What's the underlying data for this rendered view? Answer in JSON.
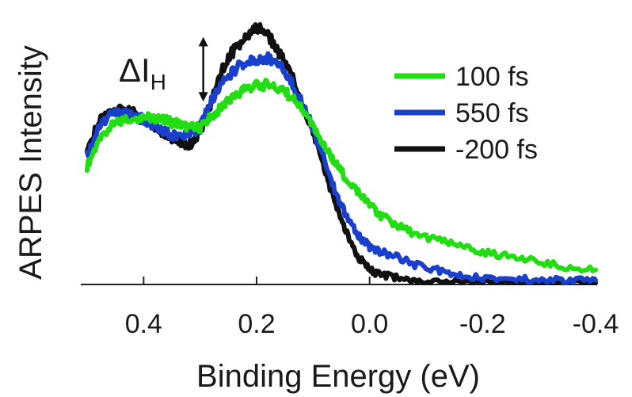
{
  "chart_data": {
    "type": "line",
    "title": "",
    "xlabel": "Binding Energy (eV)",
    "ylabel": "ARPES Intensity",
    "xlim": [
      0.5,
      -0.4
    ],
    "ylim": [
      0,
      1.0
    ],
    "x_inverted": true,
    "grid": false,
    "y_tick_labels": false,
    "x_ticks": [
      0.4,
      0.2,
      0.0,
      -0.2,
      -0.4
    ],
    "x_tick_labels": [
      "0.4",
      "0.2",
      "0.0",
      "-0.2",
      "-0.4"
    ],
    "legend_position": "top-right",
    "annotation": {
      "symbol": "ΔI",
      "subscript": "H",
      "x": 0.3,
      "y_from": 0.73,
      "y_to": 0.98
    },
    "series": [
      {
        "name": "100 fs",
        "color": "#22dd11",
        "x": [
          0.5,
          0.48,
          0.46,
          0.44,
          0.42,
          0.4,
          0.38,
          0.36,
          0.34,
          0.32,
          0.3,
          0.28,
          0.26,
          0.24,
          0.22,
          0.2,
          0.18,
          0.16,
          0.14,
          0.12,
          0.1,
          0.08,
          0.06,
          0.04,
          0.02,
          0.0,
          -0.02,
          -0.05,
          -0.08,
          -0.12,
          -0.16,
          -0.2,
          -0.25,
          -0.3,
          -0.35,
          -0.4
        ],
        "y": [
          0.45,
          0.55,
          0.6,
          0.625,
          0.635,
          0.64,
          0.635,
          0.625,
          0.615,
          0.6,
          0.6,
          0.64,
          0.68,
          0.72,
          0.75,
          0.76,
          0.765,
          0.75,
          0.72,
          0.67,
          0.6,
          0.53,
          0.46,
          0.4,
          0.35,
          0.3,
          0.26,
          0.22,
          0.19,
          0.165,
          0.14,
          0.12,
          0.1,
          0.08,
          0.06,
          0.05
        ]
      },
      {
        "name": "550 fs",
        "color": "#1a3fcc",
        "x": [
          0.5,
          0.48,
          0.46,
          0.44,
          0.42,
          0.4,
          0.38,
          0.36,
          0.34,
          0.32,
          0.3,
          0.28,
          0.26,
          0.24,
          0.22,
          0.2,
          0.18,
          0.16,
          0.14,
          0.12,
          0.1,
          0.08,
          0.06,
          0.04,
          0.02,
          0.0,
          -0.02,
          -0.05,
          -0.08,
          -0.12,
          -0.16,
          -0.2,
          -0.25,
          -0.3,
          -0.35,
          -0.4
        ],
        "y": [
          0.49,
          0.6,
          0.65,
          0.655,
          0.645,
          0.63,
          0.6,
          0.58,
          0.565,
          0.57,
          0.6,
          0.7,
          0.78,
          0.82,
          0.855,
          0.86,
          0.865,
          0.84,
          0.78,
          0.7,
          0.6,
          0.47,
          0.35,
          0.25,
          0.18,
          0.14,
          0.12,
          0.1,
          0.07,
          0.05,
          0.03,
          0.02,
          0.015,
          0.012,
          0.01,
          0.01
        ]
      },
      {
        "name": "-200 fs",
        "color": "#111111",
        "x": [
          0.5,
          0.48,
          0.46,
          0.44,
          0.42,
          0.4,
          0.38,
          0.36,
          0.34,
          0.32,
          0.3,
          0.28,
          0.26,
          0.24,
          0.22,
          0.2,
          0.18,
          0.16,
          0.14,
          0.12,
          0.1,
          0.08,
          0.06,
          0.04,
          0.02,
          0.0,
          -0.02,
          -0.05,
          -0.08,
          -0.12,
          -0.16,
          -0.2,
          -0.25,
          -0.3,
          -0.35,
          -0.4
        ],
        "y": [
          0.5,
          0.62,
          0.66,
          0.67,
          0.66,
          0.63,
          0.6,
          0.57,
          0.55,
          0.53,
          0.58,
          0.7,
          0.83,
          0.9,
          0.94,
          0.99,
          0.96,
          0.89,
          0.81,
          0.7,
          0.58,
          0.44,
          0.3,
          0.19,
          0.1,
          0.05,
          0.03,
          0.02,
          0.01,
          0.005,
          0.003,
          0.002,
          0.001,
          0.0,
          0.0,
          0.0
        ]
      }
    ]
  }
}
